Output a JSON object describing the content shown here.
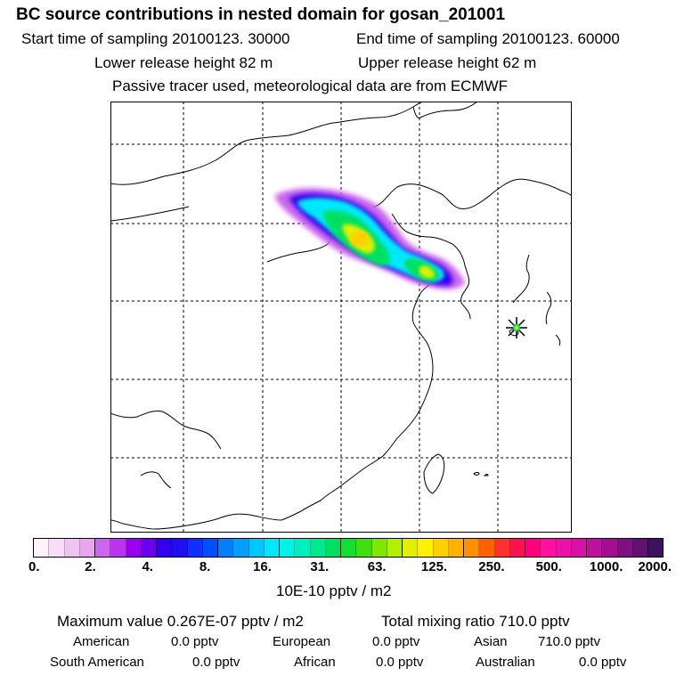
{
  "header": {
    "title": "BC  source contributions in nested domain for gosan_201001",
    "start_label": "Start time of sampling 20100123. 30000",
    "end_label": "End time of sampling 20100123. 60000",
    "lower_label": "Lower release height   82 m",
    "upper_label": "Upper release height   62 m",
    "passive_label": "Passive tracer used, meteorological data are from ECMWF"
  },
  "colorbar": {
    "tick_labels": [
      "0.",
      "2.",
      "4.",
      "8.",
      "16.",
      "31.",
      "63.",
      "125.",
      "250.",
      "500.",
      "1000.",
      "2000."
    ],
    "units": "10E-10 pptv / m2",
    "colors": [
      "#fdf2fd",
      "#f8dcf8",
      "#f1c2f3",
      "#e8a6ee",
      "#cc66ee",
      "#bb33ee",
      "#9900ee",
      "#6a00ee",
      "#3300ee",
      "#2010ee",
      "#1030ff",
      "#0050ff",
      "#0080ff",
      "#00a0ff",
      "#00c8ff",
      "#00e8ff",
      "#00f2e8",
      "#00f0c0",
      "#00e890",
      "#00e060",
      "#10e030",
      "#40e010",
      "#80e800",
      "#b0f000",
      "#e0f000",
      "#fff000",
      "#ffd000",
      "#ffb000",
      "#ff9000",
      "#ff6000",
      "#ff3030",
      "#ff1050",
      "#ff0080",
      "#ff10a0",
      "#ee10aa",
      "#d810a8",
      "#c010a0",
      "#a01090",
      "#801080",
      "#601070",
      "#401060"
    ]
  },
  "stats": {
    "max_value": "Maximum value  0.267E-07 pptv / m2",
    "total_mixing": "Total mixing ratio      710.0 pptv",
    "american_label": "American",
    "american_value": "0.0 pptv",
    "european_label": "European",
    "european_value": "0.0 pptv",
    "asian_label": "Asian",
    "asian_value": "710.0 pptv",
    "south_american_label": "South American",
    "south_american_value": "0.0 pptv",
    "african_label": "African",
    "african_value": "0.0 pptv",
    "australian_label": "Australian",
    "australian_value": "0.0 pptv"
  },
  "map": {
    "receptor_icon": "star-marker-icon",
    "plume_colors": [
      "#cc66ee",
      "#3300ee",
      "#00e8ff",
      "#00e060",
      "#e0f000",
      "#ffd000"
    ]
  }
}
